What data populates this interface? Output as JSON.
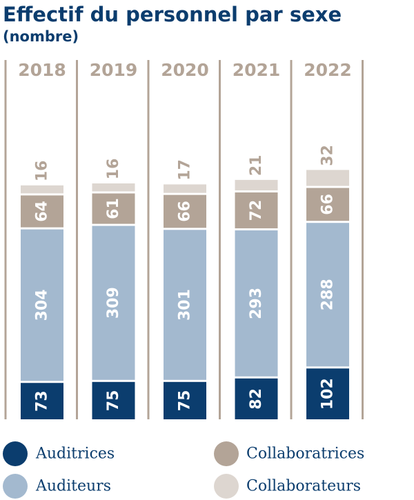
{
  "chart_data": {
    "type": "bar",
    "stacked": true,
    "orientation": "vertical",
    "title": "Effectif du personnel par sexe",
    "subtitle": "(nombre)",
    "categories": [
      "2018",
      "2019",
      "2020",
      "2021",
      "2022"
    ],
    "series": [
      {
        "name": "Auditrices",
        "color": "#0b3d6e",
        "label_color": "#ffffff",
        "values": [
          73,
          75,
          75,
          82,
          102
        ]
      },
      {
        "name": "Auditeurs",
        "color": "#a3b9cf",
        "label_color": "#ffffff",
        "values": [
          304,
          309,
          301,
          293,
          288
        ]
      },
      {
        "name": "Collaboratrices",
        "color": "#b3a497",
        "label_color": "#ffffff",
        "values": [
          64,
          61,
          66,
          72,
          66
        ]
      },
      {
        "name": "Collaborateurs",
        "color": "#ddd6d0",
        "label_color": "#b3a497",
        "values": [
          16,
          16,
          17,
          21,
          32
        ]
      }
    ],
    "value_labels": "rotated-vertical",
    "divider_color": "#b3a497",
    "grid": false,
    "legend_position": "bottom"
  }
}
